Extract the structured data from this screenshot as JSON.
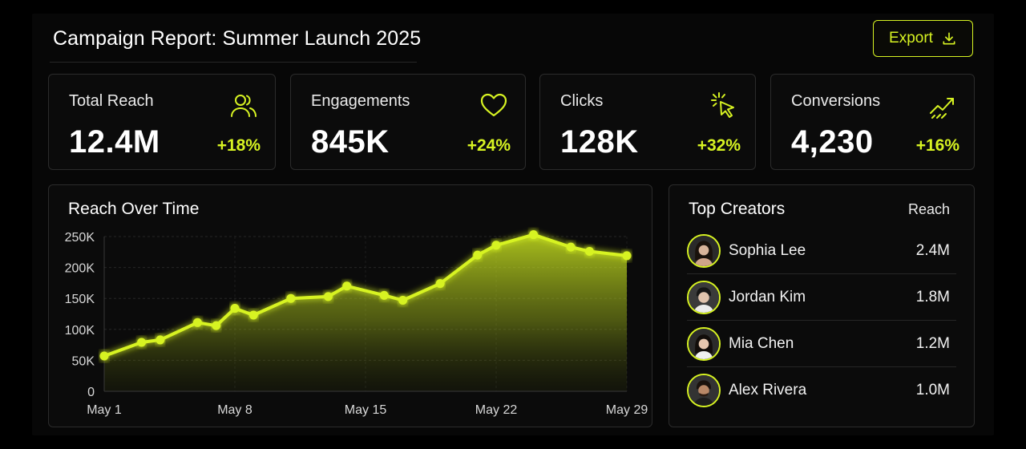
{
  "header": {
    "title": "Campaign Report: Summer Launch 2025",
    "export_label": "Export"
  },
  "kpis": [
    {
      "label": "Total Reach",
      "value": "12.4M",
      "delta": "+18%",
      "icon": "users-icon"
    },
    {
      "label": "Engagements",
      "value": "845K",
      "delta": "+24%",
      "icon": "heart-icon"
    },
    {
      "label": "Clicks",
      "value": "128K",
      "delta": "+32%",
      "icon": "cursor-click-icon"
    },
    {
      "label": "Conversions",
      "value": "4,230",
      "delta": "+16%",
      "icon": "trend-up-icon"
    }
  ],
  "reach_chart": {
    "title": "Reach Over Time"
  },
  "chart_data": {
    "type": "area",
    "title": "Reach Over Time",
    "x": [
      "May 1",
      "May 3",
      "May 4",
      "May 6",
      "May 7",
      "May 8",
      "May 9",
      "May 11",
      "May 13",
      "May 14",
      "May 16",
      "May 17",
      "May 19",
      "May 21",
      "May 22",
      "May 24",
      "May 26",
      "May 27",
      "May 29"
    ],
    "values": [
      57000,
      79000,
      83000,
      111000,
      106000,
      134000,
      123000,
      150000,
      153000,
      170000,
      155000,
      147000,
      174000,
      220000,
      236000,
      253000,
      233000,
      226000,
      219000
    ],
    "xticks": [
      "May 1",
      "May 8",
      "May 15",
      "May 22",
      "May 29"
    ],
    "yticks": [
      "0",
      "50K",
      "100K",
      "150K",
      "200K",
      "250K"
    ],
    "ylim": [
      0,
      250000
    ],
    "grid": true,
    "color": "#d7f322"
  },
  "top_creators": {
    "title": "Top Creators",
    "reach_header": "Reach",
    "rows": [
      {
        "name": "Sophia Lee",
        "reach": "2.4M"
      },
      {
        "name": "Jordan Kim",
        "reach": "1.8M"
      },
      {
        "name": "Mia Chen",
        "reach": "1.2M"
      },
      {
        "name": "Alex Rivera",
        "reach": "1.0M"
      }
    ]
  },
  "colors": {
    "accent": "#d7f322",
    "background": "#070707",
    "card": "#0b0b0b",
    "border": "#2b2b2b"
  }
}
